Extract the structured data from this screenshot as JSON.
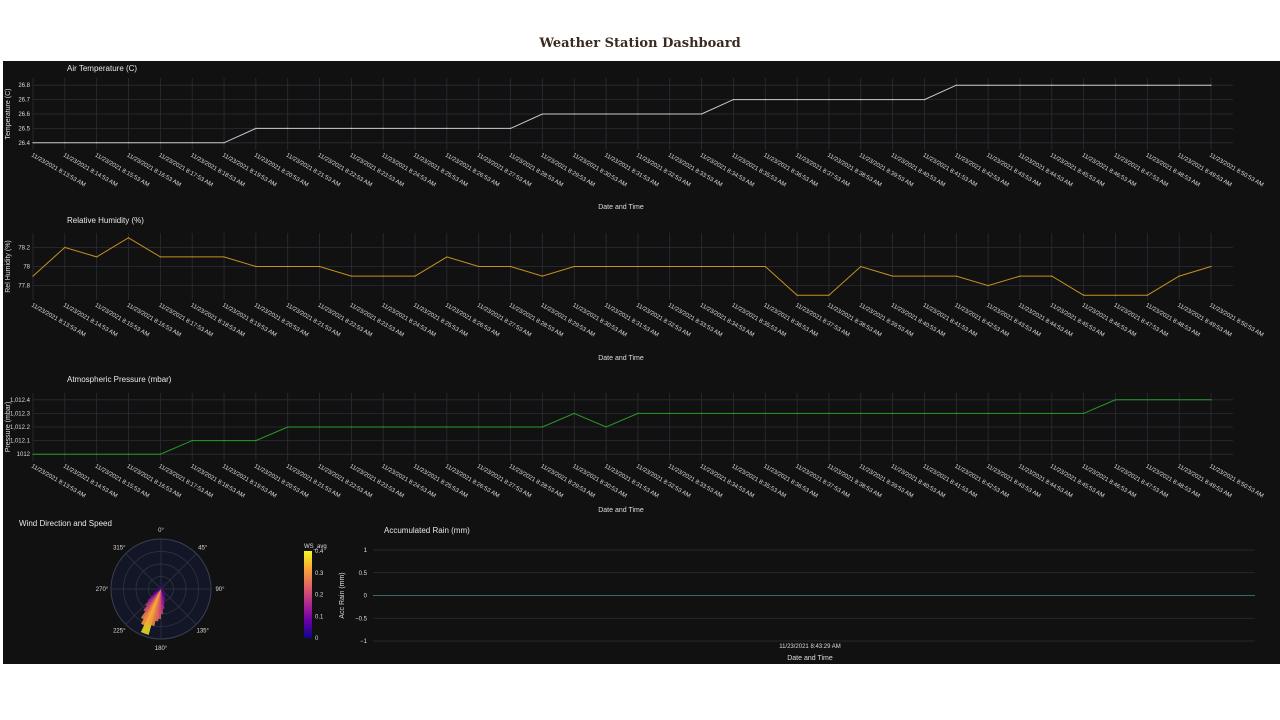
{
  "page": {
    "title": "Weather Station Dashboard"
  },
  "time_labels": [
    "11/23/2021 8:13:53 AM",
    "11/23/2021 8:14:53 AM",
    "11/23/2021 8:15:53 AM",
    "11/23/2021 8:16:53 AM",
    "11/23/2021 8:17:53 AM",
    "11/23/2021 8:18:53 AM",
    "11/23/2021 8:19:53 AM",
    "11/23/2021 8:20:53 AM",
    "11/23/2021 8:21:53 AM",
    "11/23/2021 8:22:53 AM",
    "11/23/2021 8:23:53 AM",
    "11/23/2021 8:24:53 AM",
    "11/23/2021 8:25:53 AM",
    "11/23/2021 8:26:53 AM",
    "11/23/2021 8:27:53 AM",
    "11/23/2021 8:28:53 AM",
    "11/23/2021 8:29:53 AM",
    "11/23/2021 8:30:53 AM",
    "11/23/2021 8:31:53 AM",
    "11/23/2021 8:32:53 AM",
    "11/23/2021 8:33:53 AM",
    "11/23/2021 8:34:53 AM",
    "11/23/2021 8:35:53 AM",
    "11/23/2021 8:36:53 AM",
    "11/23/2021 8:37:53 AM",
    "11/23/2021 8:38:53 AM",
    "11/23/2021 8:39:53 AM",
    "11/23/2021 8:40:53 AM",
    "11/23/2021 8:41:53 AM",
    "11/23/2021 8:42:53 AM",
    "11/23/2021 8:43:53 AM",
    "11/23/2021 8:44:53 AM",
    "11/23/2021 8:45:53 AM",
    "11/23/2021 8:46:53 AM",
    "11/23/2021 8:47:53 AM",
    "11/23/2021 8:48:53 AM",
    "11/23/2021 8:49:53 AM",
    "11/23/2021 8:50:53 AM"
  ],
  "chart_data": [
    {
      "id": "temperature",
      "type": "line",
      "title": "Air Temperature (C)",
      "xlabel": "Date and Time",
      "ylabel": "Temperature (C)",
      "color": "#cccccc",
      "ylim": [
        26.35,
        26.85
      ],
      "yticks": [
        26.4,
        26.5,
        26.6,
        26.7,
        26.8
      ],
      "ytick_labels": [
        "26.4",
        "26.5",
        "26.6",
        "26.7",
        "26.8"
      ],
      "values": [
        26.4,
        26.4,
        26.4,
        26.4,
        26.4,
        26.4,
        26.4,
        26.5,
        26.5,
        26.5,
        26.5,
        26.5,
        26.5,
        26.5,
        26.5,
        26.5,
        26.6,
        26.6,
        26.6,
        26.6,
        26.6,
        26.6,
        26.7,
        26.7,
        26.7,
        26.7,
        26.7,
        26.7,
        26.7,
        26.8,
        26.8,
        26.8,
        26.8,
        26.8,
        26.8,
        26.8,
        26.8,
        26.8
      ],
      "grid": true
    },
    {
      "id": "humidity",
      "type": "line",
      "title": "Relative Humidity (%)",
      "xlabel": "Date and Time",
      "ylabel": "Rel Humidity (%)",
      "color": "#c89020",
      "ylim": [
        77.65,
        78.35
      ],
      "yticks": [
        77.8,
        78,
        78.2
      ],
      "ytick_labels": [
        "77.8",
        "78",
        "78.2"
      ],
      "values": [
        77.9,
        78.2,
        78.1,
        78.3,
        78.1,
        78.1,
        78.1,
        78.0,
        78.0,
        78.0,
        77.9,
        77.9,
        77.9,
        78.1,
        78.0,
        78.0,
        77.9,
        78.0,
        78.0,
        78.0,
        78.0,
        78.0,
        78.0,
        78.0,
        77.7,
        77.7,
        78.0,
        77.9,
        77.9,
        77.9,
        77.8,
        77.9,
        77.9,
        77.7,
        77.7,
        77.7,
        77.9,
        78.0
      ],
      "grid": true
    },
    {
      "id": "pressure",
      "type": "line",
      "title": "Atmospheric Pressure (mbar)",
      "xlabel": "Date and Time",
      "ylabel": "Pressure (mbar)",
      "color": "#2a9a2a",
      "ylim": [
        1011.95,
        1012.45
      ],
      "yticks": [
        1012,
        1012.1,
        1012.2,
        1012.3,
        1012.4
      ],
      "ytick_labels": [
        "1012",
        "1,012.1",
        "1,012.2",
        "1,012.3",
        "1,012.4"
      ],
      "values": [
        1012.0,
        1012.0,
        1012.0,
        1012.0,
        1012.0,
        1012.1,
        1012.1,
        1012.1,
        1012.2,
        1012.2,
        1012.2,
        1012.2,
        1012.2,
        1012.2,
        1012.2,
        1012.2,
        1012.2,
        1012.3,
        1012.2,
        1012.3,
        1012.3,
        1012.3,
        1012.3,
        1012.3,
        1012.3,
        1012.3,
        1012.3,
        1012.3,
        1012.3,
        1012.3,
        1012.3,
        1012.3,
        1012.3,
        1012.3,
        1012.4,
        1012.4,
        1012.4,
        1012.4
      ],
      "grid": true
    },
    {
      "id": "wind",
      "type": "bar",
      "subtype": "polar",
      "title": "Wind Direction and Speed",
      "angular_ticks": [
        "0°",
        "45°",
        "90°",
        "135°",
        "180°",
        "225°",
        "270°",
        "315°"
      ],
      "colorbar": {
        "title": "WS_avg",
        "range": [
          0,
          0.4
        ],
        "ticks": [
          "0",
          "0.1",
          "0.2",
          "0.3",
          "0.4"
        ]
      },
      "bars": [
        {
          "dir": 200,
          "speed": 0.38
        },
        {
          "dir": 205,
          "speed": 0.32
        },
        {
          "dir": 210,
          "speed": 0.28
        },
        {
          "dir": 195,
          "speed": 0.3
        },
        {
          "dir": 190,
          "speed": 0.26
        },
        {
          "dir": 215,
          "speed": 0.22
        },
        {
          "dir": 185,
          "speed": 0.24
        },
        {
          "dir": 220,
          "speed": 0.18
        },
        {
          "dir": 180,
          "speed": 0.2
        },
        {
          "dir": 175,
          "speed": 0.16
        },
        {
          "dir": 225,
          "speed": 0.14
        },
        {
          "dir": 170,
          "speed": 0.12
        },
        {
          "dir": 230,
          "speed": 0.1
        },
        {
          "dir": 160,
          "speed": 0.09
        },
        {
          "dir": 240,
          "speed": 0.07
        },
        {
          "dir": 150,
          "speed": 0.06
        },
        {
          "dir": 250,
          "speed": 0.05
        },
        {
          "dir": 140,
          "speed": 0.05
        },
        {
          "dir": 0,
          "speed": 0.04
        },
        {
          "dir": 20,
          "speed": 0.05
        },
        {
          "dir": 340,
          "speed": 0.04
        }
      ]
    },
    {
      "id": "rain",
      "type": "line",
      "title": "Accumulated Rain (mm)",
      "xlabel": "Date and Time",
      "ylabel": "Acc Rain (mm)",
      "color": "#3a6a6a",
      "ylim": [
        -1,
        1
      ],
      "yticks": [
        -1,
        -0.5,
        0,
        0.5,
        1
      ],
      "ytick_labels": [
        "−1",
        "−0.5",
        "0",
        "0.5",
        "1"
      ],
      "xtick_label": "11/23/2021 8:43:29 AM",
      "values": [
        0,
        0
      ],
      "grid": true
    }
  ]
}
